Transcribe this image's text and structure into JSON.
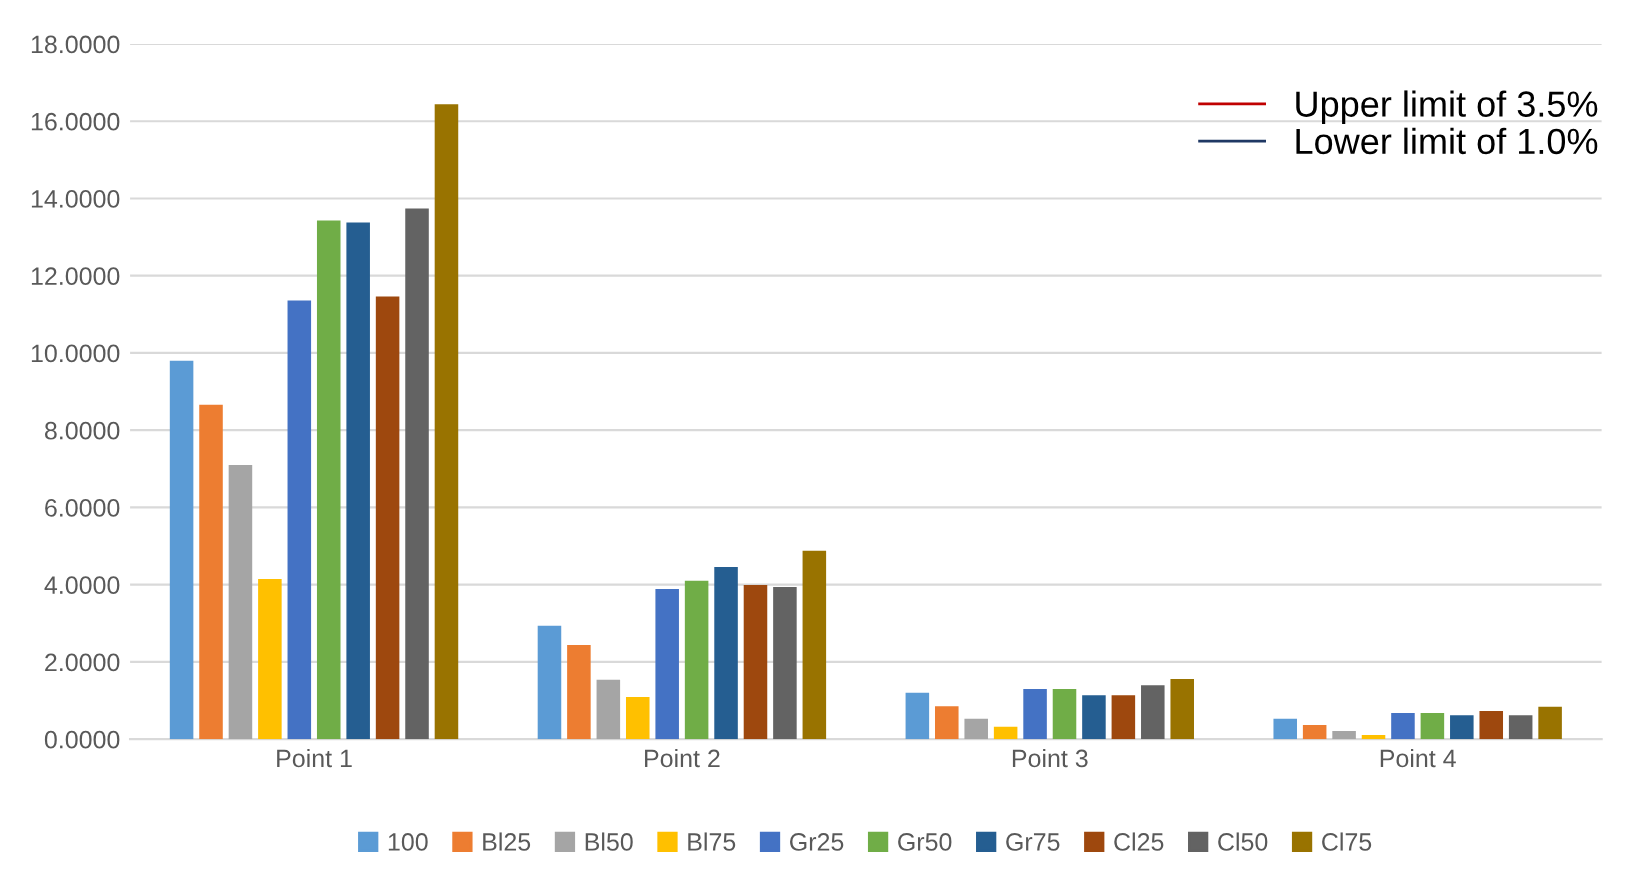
{
  "chart_data": {
    "type": "bar",
    "categories": [
      "Point 1",
      "Point 2",
      "Point 3",
      "Point 4"
    ],
    "series": [
      {
        "name": "100",
        "color": "#5b9bd5",
        "values": [
          9.8,
          2.94,
          1.2,
          0.53
        ]
      },
      {
        "name": "Bl25",
        "color": "#ed7d31",
        "values": [
          8.66,
          2.44,
          0.85,
          0.37
        ]
      },
      {
        "name": "Bl50",
        "color": "#a5a5a5",
        "values": [
          7.1,
          1.54,
          0.53,
          0.21
        ]
      },
      {
        "name": "Bl75",
        "color": "#ffc000",
        "values": [
          4.15,
          1.09,
          0.32,
          0.11
        ]
      },
      {
        "name": "Gr25",
        "color": "#4472c4",
        "values": [
          11.36,
          3.89,
          1.3,
          0.68
        ]
      },
      {
        "name": "Gr50",
        "color": "#70ad47",
        "values": [
          13.43,
          4.1,
          1.3,
          0.68
        ]
      },
      {
        "name": "Gr75",
        "color": "#255e91",
        "values": [
          13.38,
          4.46,
          1.14,
          0.62
        ]
      },
      {
        "name": "Cl25",
        "color": "#9e480e",
        "values": [
          11.46,
          3.99,
          1.14,
          0.73
        ]
      },
      {
        "name": "Cl50",
        "color": "#636363",
        "values": [
          13.74,
          3.94,
          1.4,
          0.62
        ]
      },
      {
        "name": "Cl75",
        "color": "#997300",
        "values": [
          16.44,
          4.88,
          1.56,
          0.84
        ]
      },
      {
        "name": "Upper limit of 3.5%",
        "type": "line",
        "color": "#c00000",
        "values": [
          null,
          null,
          null,
          null
        ]
      },
      {
        "name": "Lower limit of 1.0%",
        "type": "line",
        "color": "#1f3864",
        "values": [
          null,
          null,
          null,
          null
        ]
      }
    ],
    "ylim": [
      0,
      18
    ],
    "yticks": [
      {
        "value": 0,
        "label": "0.0000"
      },
      {
        "value": 2,
        "label": "2.0000"
      },
      {
        "value": 4,
        "label": "4.0000"
      },
      {
        "value": 6,
        "label": "6.0000"
      },
      {
        "value": 8,
        "label": "8.0000"
      },
      {
        "value": 10,
        "label": "10.0000"
      },
      {
        "value": 12,
        "label": "12.0000"
      },
      {
        "value": 14,
        "label": "14.0000"
      },
      {
        "value": 16,
        "label": "16.0000"
      },
      {
        "value": 18,
        "label": "18.0000"
      }
    ],
    "grid": "y",
    "legend": "bottom"
  }
}
